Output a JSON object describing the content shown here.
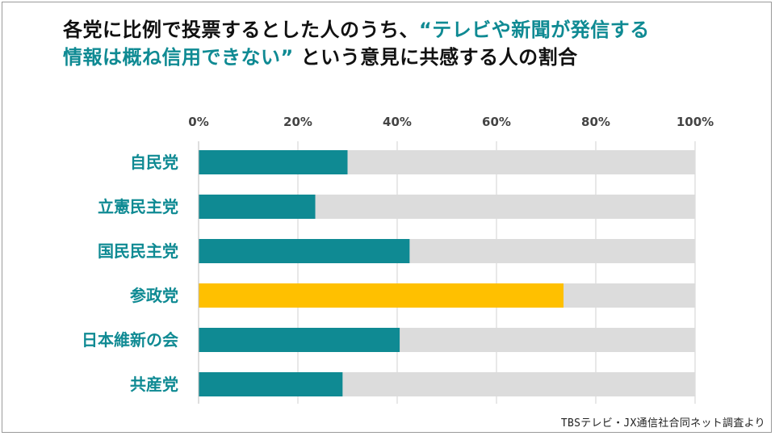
{
  "title": {
    "line1_plain": "各党に比例で投票するとした人のうち、",
    "line1_highlight": "“テレビや新聞が発信する",
    "line2_highlight": "情報は概ね信用できない”",
    "line2_plain": " という意見に共感する人の割合"
  },
  "source": "TBSテレビ・JX通信社合同ネット調査より",
  "colors": {
    "main_bar": "#0f8a93",
    "highlight_bar": "#ffc000",
    "track": "#dcdcdc",
    "category_label": "#0f8a93",
    "tick_label": "#444444",
    "grid": "#d0d0d0"
  },
  "chart_data": {
    "type": "bar",
    "orientation": "horizontal",
    "stacked_to_100": true,
    "categories": [
      "自民党",
      "立憲民主党",
      "国民民主党",
      "参政党",
      "日本維新の会",
      "共産党"
    ],
    "values": [
      30,
      23.5,
      42.5,
      73.5,
      40.5,
      29
    ],
    "highlight": "参政党",
    "xlim": [
      0,
      100
    ],
    "x_ticks": [
      0,
      20,
      40,
      60,
      80,
      100
    ],
    "x_tick_labels": [
      "0%",
      "20%",
      "40%",
      "60%",
      "80%",
      "100%"
    ],
    "axis_position": "top",
    "grid": true,
    "legend": "none"
  }
}
